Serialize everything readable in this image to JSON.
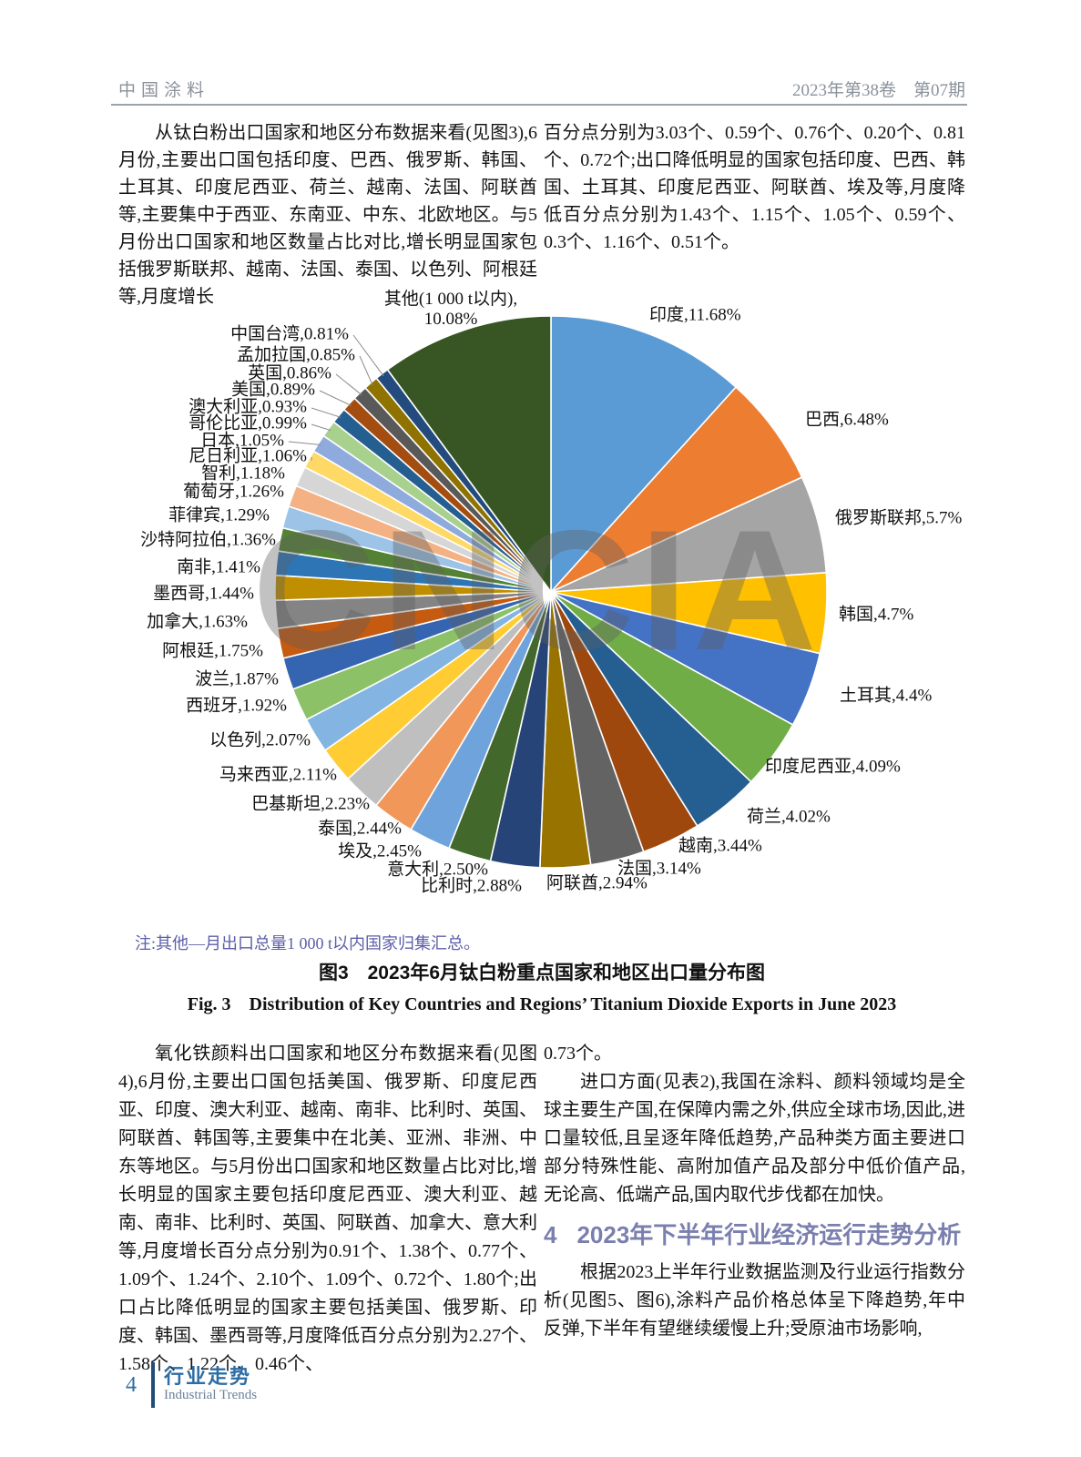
{
  "header": {
    "journal": "中国涂料",
    "issue": "2023年第38卷　第07期"
  },
  "paragraphs": {
    "top_left": "从钛白粉出口国家和地区分布数据来看(见图3),6月份,主要出口国包括印度、巴西、俄罗斯、韩国、土耳其、印度尼西亚、荷兰、越南、法国、阿联酋等,主要集中于西亚、东南亚、中东、北欧地区。与5月份出口国家和地区数量占比对比,增长明显国家包括俄罗斯联邦、越南、法国、泰国、以色列、阿根廷等,月度增长",
    "top_right": "百分点分别为3.03个、0.59个、0.76个、0.20个、0.81个、0.72个;出口降低明显的国家包括印度、巴西、韩国、土耳其、印度尼西亚、阿联酋、埃及等,月度降低百分点分别为1.43个、1.15个、1.05个、0.59个、0.3个、1.16个、0.51个。",
    "bottom_left": "氧化铁颜料出口国家和地区分布数据来看(见图4),6月份,主要出口国包括美国、俄罗斯、印度尼西亚、印度、澳大利亚、越南、南非、比利时、英国、阿联酋、韩国等,主要集中在北美、亚洲、非洲、中东等地区。与5月份出口国家和地区数量占比对比,增长明显的国家主要包括印度尼西亚、澳大利亚、越南、南非、比利时、英国、阿联酋、加拿大、意大利等,月度增长百分点分别为0.91个、1.38个、0.77个、1.09个、1.24个、2.10个、1.09个、0.72个、1.80个;出口占比降低明显的国家主要包括美国、俄罗斯、印度、韩国、墨西哥等,月度降低百分点分别为2.27个、1.58个、1.22个、0.46个、",
    "bottom_right_cont": "0.73个。",
    "bottom_right_p2": "进口方面(见表2),我国在涂料、颜料领域均是全球主要生产国,在保障内需之外,供应全球市场,因此,进口量较低,且呈逐年降低趋势,产品种类方面主要进口部分特殊性能、高附加值产品及部分中低价值产品,无论高、低端产品,国内取代步伐都在加快。",
    "bottom_right_p3": "根据2023上半年行业数据监测及行业运行指数分析(见图5、图6),涂料产品价格总体呈下降趋势,年中反弹,下半年有望继续缓慢上升;受原油市场影响,"
  },
  "section_heading": {
    "number": "4",
    "title": "2023年下半年行业经济运行走势分析"
  },
  "figure": {
    "note": "注:其他—月出口总量1 000 t以内国家归集汇总。",
    "caption_zh": "图3　2023年6月钛白粉重点国家和地区出口量分布图",
    "caption_en": "Fig. 3　Distribution of Key Countries and Regions’ Titanium Dioxide Exports in June 2023",
    "watermark": "CNCIA"
  },
  "footer": {
    "page_number": "4",
    "column_zh": "行业走势",
    "column_en": "Industrial Trends"
  },
  "chart_data": {
    "type": "pie",
    "title": "2023年6月钛白粉重点国家和地区出口量分布图",
    "unit": "%",
    "start_angle_deg": 0,
    "direction": "clockwise",
    "legend_position": "outside-labels",
    "slices": [
      {
        "label": "印度",
        "value": 11.68,
        "pct_text": "11.68%",
        "color": "#5B9BD5"
      },
      {
        "label": "巴西",
        "value": 6.48,
        "pct_text": "6.48%",
        "color": "#ED7D31"
      },
      {
        "label": "俄罗斯联邦",
        "value": 5.7,
        "pct_text": "5.7%",
        "color": "#A5A5A5"
      },
      {
        "label": "韩国",
        "value": 4.7,
        "pct_text": "4.7%",
        "color": "#FFC000"
      },
      {
        "label": "土耳其",
        "value": 4.4,
        "pct_text": "4.4%",
        "color": "#4472C4"
      },
      {
        "label": "印度尼西亚",
        "value": 4.09,
        "pct_text": "4.09%",
        "color": "#70AD47"
      },
      {
        "label": "荷兰",
        "value": 4.02,
        "pct_text": "4.02%",
        "color": "#255E91"
      },
      {
        "label": "越南",
        "value": 3.44,
        "pct_text": "3.44%",
        "color": "#9E480E"
      },
      {
        "label": "法国",
        "value": 3.14,
        "pct_text": "3.14%",
        "color": "#636363"
      },
      {
        "label": "阿联酋",
        "value": 2.94,
        "pct_text": "2.94%",
        "color": "#997300"
      },
      {
        "label": "比利时",
        "value": 2.88,
        "pct_text": "2.88%",
        "color": "#264478"
      },
      {
        "label": "意大利",
        "value": 2.5,
        "pct_text": "2.50%",
        "color": "#43682B"
      },
      {
        "label": "埃及",
        "value": 2.45,
        "pct_text": "2.45%",
        "color": "#6FA3DB"
      },
      {
        "label": "泰国",
        "value": 2.44,
        "pct_text": "2.44%",
        "color": "#F1975A"
      },
      {
        "label": "巴基斯坦",
        "value": 2.23,
        "pct_text": "2.23%",
        "color": "#BFBFBF"
      },
      {
        "label": "马来西亚",
        "value": 2.11,
        "pct_text": "2.11%",
        "color": "#FFCD33"
      },
      {
        "label": "以色列",
        "value": 2.07,
        "pct_text": "2.07%",
        "color": "#84B4E1"
      },
      {
        "label": "西班牙",
        "value": 1.92,
        "pct_text": "1.92%",
        "color": "#8CC168"
      },
      {
        "label": "波兰",
        "value": 1.87,
        "pct_text": "1.87%",
        "color": "#3565B0"
      },
      {
        "label": "阿根廷",
        "value": 1.75,
        "pct_text": "1.75%",
        "color": "#C55A11"
      },
      {
        "label": "加拿大",
        "value": 1.63,
        "pct_text": "1.63%",
        "color": "#848484"
      },
      {
        "label": "墨西哥",
        "value": 1.44,
        "pct_text": "1.44%",
        "color": "#BF8F00"
      },
      {
        "label": "南非",
        "value": 1.41,
        "pct_text": "1.41%",
        "color": "#2E75B6"
      },
      {
        "label": "沙特阿拉伯",
        "value": 1.36,
        "pct_text": "1.36%",
        "color": "#548235"
      },
      {
        "label": "菲律宾",
        "value": 1.29,
        "pct_text": "1.29%",
        "color": "#9DC3E6"
      },
      {
        "label": "葡萄牙",
        "value": 1.26,
        "pct_text": "1.26%",
        "color": "#F4B183"
      },
      {
        "label": "智利",
        "value": 1.18,
        "pct_text": "1.18%",
        "color": "#D6D6D6"
      },
      {
        "label": "尼日利亚",
        "value": 1.06,
        "pct_text": "1.06%",
        "color": "#FFD966"
      },
      {
        "label": "日本",
        "value": 1.05,
        "pct_text": "1.05%",
        "color": "#8FAADC"
      },
      {
        "label": "哥伦比亚",
        "value": 0.99,
        "pct_text": "0.99%",
        "color": "#A9D18E"
      },
      {
        "label": "澳大利亚",
        "value": 0.93,
        "pct_text": "0.93%",
        "color": "#255E91"
      },
      {
        "label": "美国",
        "value": 0.89,
        "pct_text": "0.89%",
        "color": "#A34D11"
      },
      {
        "label": "英国",
        "value": 0.86,
        "pct_text": "0.86%",
        "color": "#595959"
      },
      {
        "label": "孟加拉国",
        "value": 0.85,
        "pct_text": "0.85%",
        "color": "#8F7300"
      },
      {
        "label": "中国台湾",
        "value": 0.81,
        "pct_text": "0.81%",
        "color": "#234B7D"
      },
      {
        "label": "其他(1 000 t以内)",
        "value": 10.08,
        "pct_text": "10.08%",
        "color": "#375623"
      }
    ]
  }
}
